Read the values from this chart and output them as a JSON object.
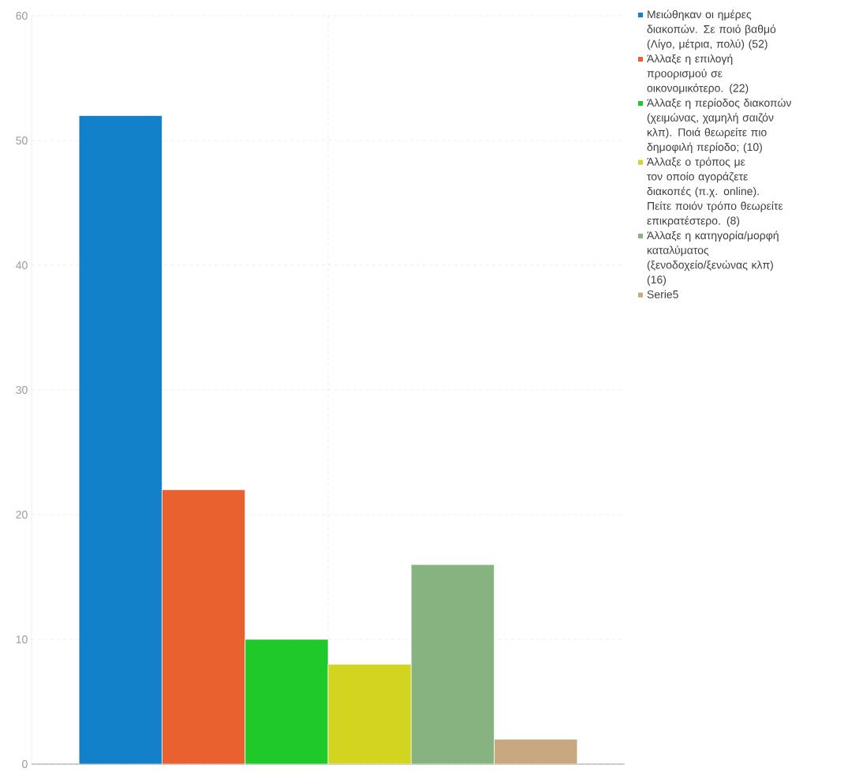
{
  "chart_data": {
    "type": "bar",
    "categories": [
      null
    ],
    "series": [
      {
        "name": "Μειώθηκαν οι ημέρες διακοπών. Σε ποιό βαθμό (Λίγο, μέτρια, πολύ) (52)",
        "color": "#1381c9",
        "values": [
          52
        ]
      },
      {
        "name": "Άλλαξε η επιλογή προορισμού σε οικονομικότερο. (22)",
        "color": "#e8612f",
        "values": [
          22
        ]
      },
      {
        "name": "Άλλαξε η περίοδος διακοπών (χειμώνας, χαμηλή σαιζόν κλπ). Ποιά θεωρείτε πιο δημοφιλή περίοδο; (10)",
        "color": "#20c92a",
        "values": [
          10
        ]
      },
      {
        "name": "Άλλαξε ο τρόπος με τον οποίο αγοράζετε διακοπές (π.χ. online). Πείτε ποιόν τρόπο θεωρείτε επικρατέστερο. (8)",
        "color": "#d3d41f",
        "values": [
          8
        ]
      },
      {
        "name": "Άλλαξε η κατηγορία/μορφή καταλύματος (ξενοδοχείο/ξενώνας κλπ) (16)",
        "color": "#86b37f",
        "values": [
          16
        ]
      },
      {
        "name": "Serie5",
        "color": "#c8a87e",
        "values": [
          2
        ]
      }
    ],
    "ylim": [
      0,
      60
    ],
    "yticks": [
      0,
      10,
      20,
      30,
      40,
      50,
      60
    ],
    "grid": true,
    "legend": "right"
  }
}
